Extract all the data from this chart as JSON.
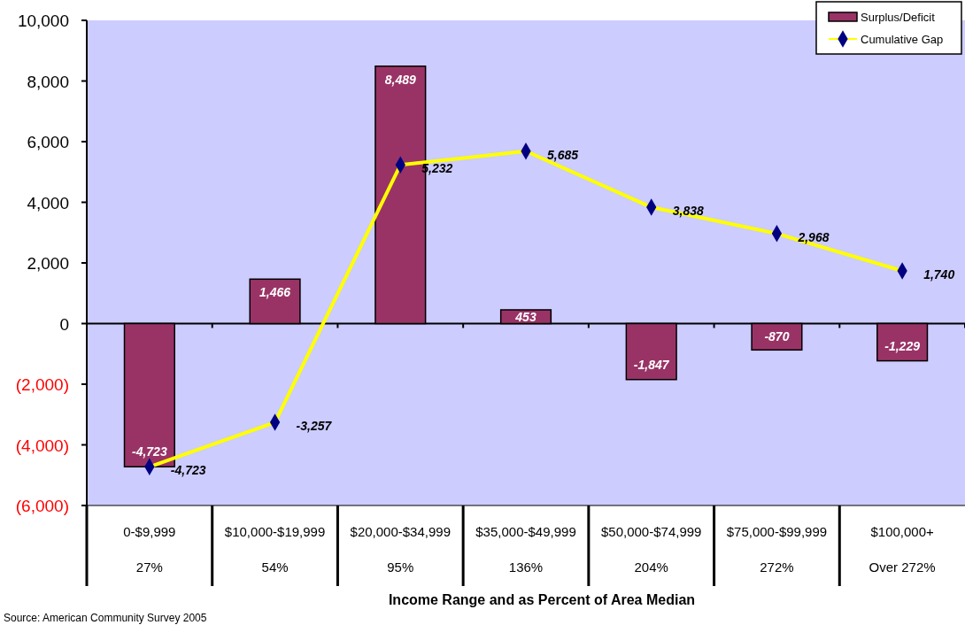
{
  "chart_data": {
    "type": "bar",
    "categories": [
      "0-$9,999\n27%",
      "$10,000-$19,999\n54%",
      "$20,000-$34,999\n95%",
      "$35,000-$49,999\n136%",
      "$50,000-$74,999\n204%",
      "$75,000-$99,999\n272%",
      "$100,000+\nOver 272%"
    ],
    "series": [
      {
        "name": "Surplus/Deficit",
        "color": "#993366",
        "values": [
          -4723,
          1466,
          8489,
          453,
          -1847,
          -870,
          -1229
        ],
        "value_labels": [
          "-4,723",
          "1,466",
          "8,489",
          "453",
          "-1,847",
          "-870",
          "-1,229"
        ]
      },
      {
        "name": "Cumulative Gap",
        "type": "line",
        "color": "#ffff00",
        "marker": "diamond",
        "values": [
          -4723,
          -3257,
          5232,
          5685,
          3838,
          2968,
          1740
        ],
        "value_labels": [
          "-4,723",
          "-3,257",
          "5,232",
          "5,685",
          "3,838",
          "2,968",
          "1,740"
        ]
      }
    ],
    "ylim": [
      -6000,
      10000
    ],
    "yticks": [
      {
        "value": -6000,
        "label": "(6,000)"
      },
      {
        "value": -4000,
        "label": "(4,000)"
      },
      {
        "value": -2000,
        "label": "(2,000)"
      },
      0,
      {
        "value": 2000,
        "label": "2,000"
      },
      {
        "value": 4000,
        "label": "4,000"
      },
      {
        "value": 6000,
        "label": "6,000"
      },
      {
        "value": 8000,
        "label": "8,000"
      },
      {
        "value": 10000,
        "label": "10,000"
      }
    ],
    "legend": "top right",
    "annotations": [
      "Source: American Community Survey 2005",
      "Income Range and as Percent of Area Median"
    ]
  }
}
